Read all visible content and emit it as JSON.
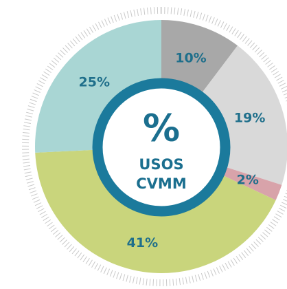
{
  "chart_data": {
    "type": "pie",
    "values": [
      10,
      19,
      2,
      41,
      25
    ],
    "value_labels": [
      "10%",
      "19%",
      "2%",
      "41%",
      "25%"
    ],
    "colors": [
      "#a8a8a8",
      "#d9d9d9",
      "#d8a3aa",
      "#c9d57c",
      "#a9d6d4"
    ],
    "center_text": [
      "%",
      "USOS",
      "CVMM"
    ]
  }
}
